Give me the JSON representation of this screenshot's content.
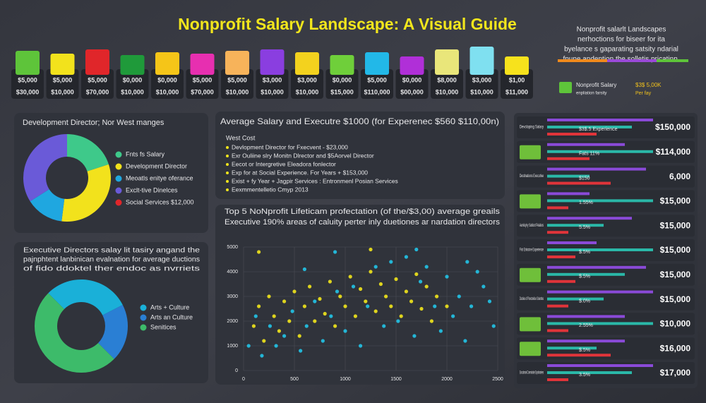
{
  "title": "Nonprofit Salary Landscape: A Visual Guide",
  "header_note": [
    "Nonprofit salarlt Landscapes",
    "nerhoctions for biseer for ita",
    "byelance s gaparating satsity ndarial",
    "fnune andention the solletis pricatinn."
  ],
  "tiles": [
    {
      "color": "#5ec43a",
      "label": "$5,000",
      "sublabel": "$30,000"
    },
    {
      "color": "#f2e21c",
      "label": "$5,000",
      "sublabel": "$10,000"
    },
    {
      "color": "#e0262a",
      "label": "$5,000",
      "sublabel": "$70,000"
    },
    {
      "color": "#1f9a3a",
      "label": "$0,000",
      "sublabel": "$10,000"
    },
    {
      "color": "#f5c518",
      "label": "$0,000",
      "sublabel": "$10,000"
    },
    {
      "color": "#e72fb0",
      "label": "$5,000",
      "sublabel": "$70,000"
    },
    {
      "color": "#f7b35a",
      "label": "$5,000",
      "sublabel": "$10,000"
    },
    {
      "color": "#8a3ee0",
      "label": "$3,000",
      "sublabel": "$10,000"
    },
    {
      "color": "#f3d21e",
      "label": "$3,000",
      "sublabel": "$10,000"
    },
    {
      "color": "#6fcf3a",
      "label": "$0,000",
      "sublabel": "$15,000"
    },
    {
      "color": "#22b8e8",
      "label": "$5,000",
      "sublabel": "$110,000"
    },
    {
      "color": "#b02fd8",
      "label": "$0,000",
      "sublabel": "$00,000"
    },
    {
      "color": "#e9e67a",
      "label": "$8,000",
      "sublabel": "$10,000"
    },
    {
      "color": "#7fe0f0",
      "label": "$3,000",
      "sublabel": "$10,000"
    },
    {
      "color": "#f7e21c",
      "label": "$1,00",
      "sublabel": "$11,000"
    }
  ],
  "legend_strip": {
    "colors": [
      "#f08a1c",
      "#9a4ad8",
      "#5ec43a"
    ],
    "items": [
      "Nonprofit Salary",
      "enpliation farsity",
      "$3$ 5,00K",
      "Per fay"
    ]
  },
  "info_panel": {
    "title": "Average Salary and Executre $1000 (for Experenec $560 $110,00n)",
    "subtitle": "West Cost",
    "bullets": [
      "Devlopment Director for Fxecvent - $23,000",
      "Exr Ouliine slry Monitn Dlrector and $5Aorvel Director",
      "Eecot or Intergretive Eleadora fonlector",
      "Exp for at Social Experience. For Years + $153,000",
      "Exist + fy Year + Jagpir Services : Entronmenl Posian Services",
      "Eexmmentelletio Cmyp 2013"
    ]
  },
  "rows": [
    {
      "label": "Devcloping Salary",
      "note": "$3$.5 Experience",
      "amount": "$150,000"
    },
    {
      "note": "Fats 11%",
      "amount": "$114,000"
    },
    {
      "label": "Destinations Executive",
      "note": "$150",
      "amount": "6,000"
    },
    {
      "note": "1.55%",
      "amount": "$15,000"
    },
    {
      "label": "Aumlicyhy Sublicnt Pelatiors",
      "note": "5.5%",
      "amount": "$15,000"
    },
    {
      "label": "Fist Enlocine Experience",
      "note": "$.5%",
      "amount": "$15,000"
    },
    {
      "note": "$.5%",
      "amount": "$15,000"
    },
    {
      "label": "Dssties of Ponctovilce Solurttes",
      "note": "$.0%",
      "amount": "$15,000"
    },
    {
      "note": "2.55%",
      "amount": "$10,000"
    },
    {
      "note": "$.5%",
      "amount": "$16,000"
    },
    {
      "label": "Eocutional Conmulaite Exploiratees",
      "note": "3.5%",
      "amount": "$17,000"
    }
  ],
  "chart_data": [
    {
      "type": "pie",
      "title": "Development Director; Nor West manges",
      "categories": [
        "Fnts fs Salary",
        "Development Director",
        "Meoatls enitye oferance",
        "Exclt-tive Dinelces",
        "Social Services $12,000"
      ],
      "colors": [
        "#3ec98a",
        "#f2e21c",
        "#1fa7e0",
        "#6a5ad8",
        "#e0262a"
      ],
      "values": [
        20,
        32,
        14,
        34,
        0
      ]
    },
    {
      "type": "pie",
      "title": [
        "Executive Directors salay lit tasiry angand the",
        "pajnphtent lanbinican evalnation for average ductions",
        "of fido ddoktel ther endoc as nvrriets"
      ],
      "categories": [
        "Arts + Culture",
        "Arts an Culture",
        "Senitices"
      ],
      "colors": [
        "#1ab0d8",
        "#2a7fd4",
        "#3dbb6a"
      ],
      "values": [
        30,
        20,
        50
      ]
    },
    {
      "type": "scatter",
      "title": [
        "Top 5 NoNprofit Lifeticam profectation (of the/$3,00) average greails",
        "Executive 190% areas of caluity perter inly duetiones ar nardation directors"
      ],
      "xlim": [
        0,
        2500
      ],
      "xticks": [
        0,
        500,
        1000,
        1500,
        2000,
        2500
      ],
      "ylim": [
        0,
        5000
      ],
      "yticks": [
        0,
        1000,
        2000,
        3000,
        4000,
        5000
      ],
      "series": [
        {
          "color": "#f2e61c",
          "x": [
            100,
            150,
            200,
            250,
            300,
            350,
            400,
            450,
            500,
            550,
            600,
            650,
            700,
            750,
            800,
            850,
            900,
            950,
            1000,
            1050,
            1100,
            1150,
            1200,
            1250,
            1300,
            1350,
            1400,
            1450,
            1500,
            1550,
            1600,
            1650,
            1700,
            1750,
            1800,
            1850,
            1900,
            2000,
            150,
            1250
          ],
          "values": [
            1800,
            2600,
            1200,
            3000,
            2200,
            1600,
            2800,
            2000,
            3200,
            1400,
            2600,
            3400,
            2000,
            2900,
            2300,
            3600,
            1800,
            3000,
            2600,
            3800,
            2200,
            3300,
            2800,
            4000,
            2400,
            3500,
            3000,
            2600,
            3700,
            2200,
            3200,
            2800,
            3900,
            2500,
            3400,
            2000,
            3000,
            2600,
            4800,
            4900
          ]
        },
        {
          "color": "#22c4e8",
          "x": [
            50,
            120,
            180,
            260,
            320,
            400,
            480,
            560,
            620,
            700,
            780,
            860,
            920,
            1000,
            1080,
            1150,
            1220,
            1300,
            1380,
            1450,
            1520,
            1600,
            1680,
            1740,
            1800,
            1880,
            1940,
            2000,
            2060,
            2120,
            2180,
            2240,
            2300,
            2360,
            2420,
            2460,
            900,
            1700,
            2200,
            600
          ],
          "values": [
            1000,
            2200,
            600,
            1800,
            1000,
            1400,
            2400,
            800,
            1800,
            2800,
            1200,
            2200,
            3200,
            1600,
            3400,
            1000,
            2600,
            4200,
            1800,
            4400,
            2000,
            4600,
            1400,
            3600,
            4200,
            2600,
            1600,
            3800,
            2200,
            3000,
            1200,
            2600,
            4000,
            3400,
            2800,
            1800,
            4800,
            4900,
            4400,
            4100
          ]
        }
      ]
    }
  ]
}
